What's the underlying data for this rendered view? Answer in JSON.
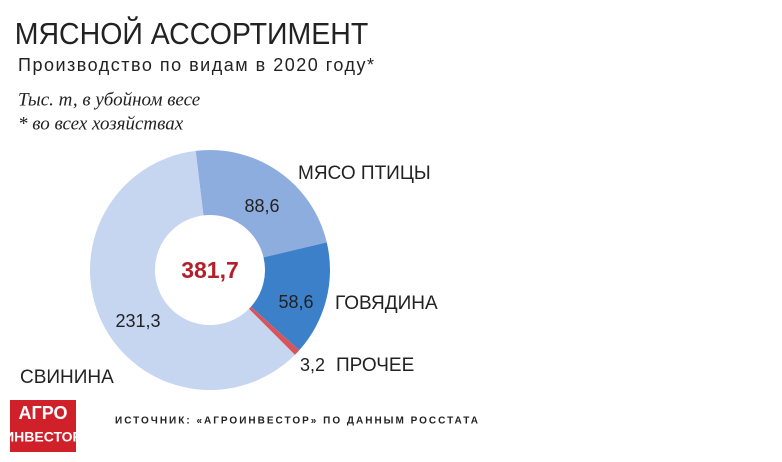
{
  "chart_data": {
    "type": "donut",
    "title": "МЯСНОЙ АССОРТИМЕНТ",
    "subtitle": "Производство по видам в 2020 году*",
    "notes": [
      "Тыс. т, в убойном весе",
      "* во всех хозяйствах"
    ],
    "categories": [
      "МЯСО ПТИЦЫ",
      "ГОВЯДИНА",
      "ПРОЧЕЕ",
      "СВИНИНА"
    ],
    "values": [
      88.6,
      58.6,
      3.2,
      231.3
    ],
    "value_labels": [
      "88,6",
      "58,6",
      "3,2",
      "231,3"
    ],
    "colors": [
      "#8eaddf",
      "#3b80c9",
      "#d9545a",
      "#c6d6f0"
    ],
    "total": {
      "value": 381.7,
      "label": "381,7"
    },
    "source": "ИСТОЧНИК: «АГРОИНВЕСТОР» ПО ДАННЫМ РОССТАТА"
  },
  "logo": [
    "АГРО",
    "ИНВЕСТОР"
  ]
}
